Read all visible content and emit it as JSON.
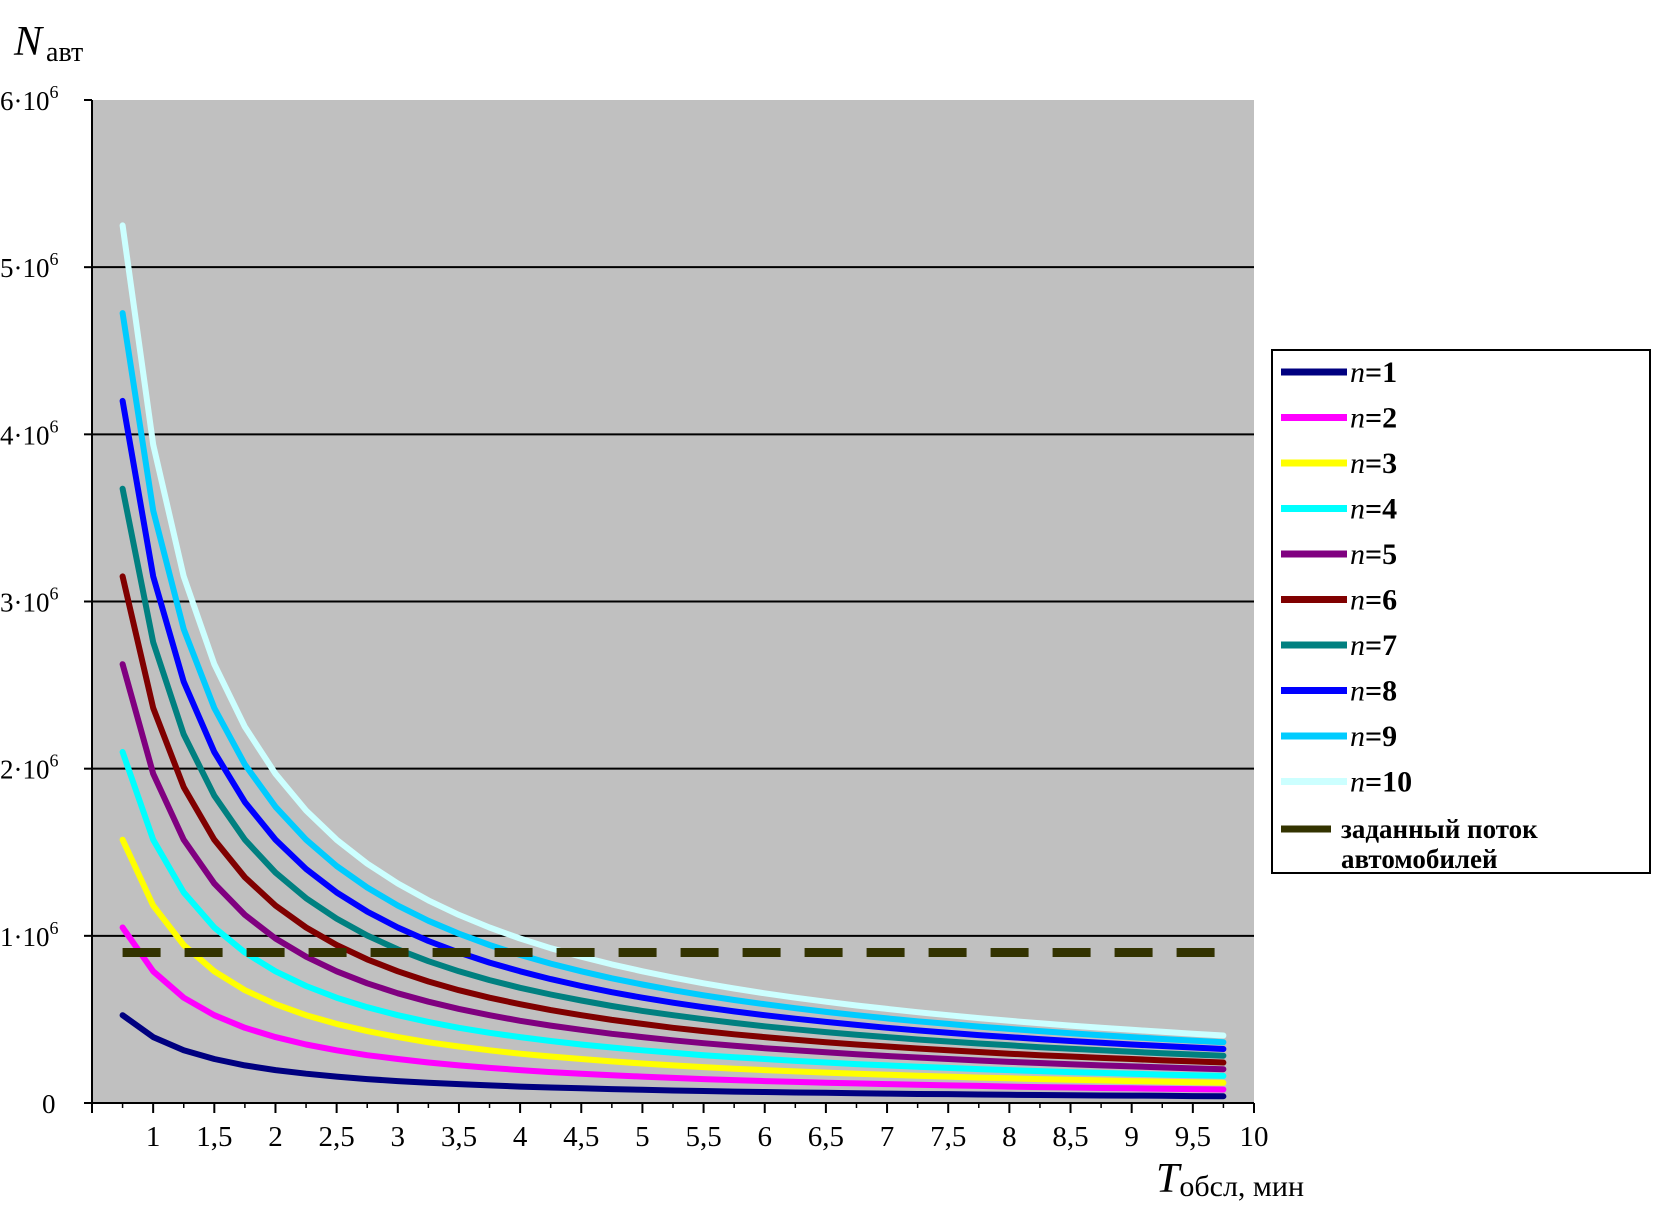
{
  "chart_data": {
    "type": "line",
    "title": "",
    "ylabel_main": "N",
    "ylabel_sub": "авт",
    "xlabel_main": "T",
    "xlabel_sub": "обсл",
    "xlabel_unit": ", мин",
    "xlim": [
      0.5,
      10
    ],
    "ylim": [
      0,
      6000000
    ],
    "x_ticks": [
      {
        "value": 1,
        "label": "1"
      },
      {
        "value": 1.5,
        "label": "1,5"
      },
      {
        "value": 2,
        "label": "2"
      },
      {
        "value": 2.5,
        "label": "2,5"
      },
      {
        "value": 3,
        "label": "3"
      },
      {
        "value": 3.5,
        "label": "3,5"
      },
      {
        "value": 4,
        "label": "4"
      },
      {
        "value": 4.5,
        "label": "4,5"
      },
      {
        "value": 5,
        "label": "5"
      },
      {
        "value": 5.5,
        "label": "5,5"
      },
      {
        "value": 6,
        "label": "6"
      },
      {
        "value": 6.5,
        "label": "6,5"
      },
      {
        "value": 7,
        "label": "7"
      },
      {
        "value": 7.5,
        "label": "7,5"
      },
      {
        "value": 8,
        "label": "8"
      },
      {
        "value": 8.5,
        "label": "8,5"
      },
      {
        "value": 9,
        "label": "9"
      },
      {
        "value": 9.5,
        "label": "9,5"
      },
      {
        "value": 10,
        "label": "10"
      }
    ],
    "y_ticks": [
      {
        "value": 0,
        "mantissa": "0",
        "exp": ""
      },
      {
        "value": 1000000,
        "mantissa": "1·10",
        "exp": "6"
      },
      {
        "value": 2000000,
        "mantissa": "2·10",
        "exp": "6"
      },
      {
        "value": 3000000,
        "mantissa": "3·10",
        "exp": "6"
      },
      {
        "value": 4000000,
        "mantissa": "4·10",
        "exp": "6"
      },
      {
        "value": 5000000,
        "mantissa": "5·10",
        "exp": "6"
      },
      {
        "value": 6000000,
        "mantissa": "6·10",
        "exp": "6"
      }
    ],
    "grid": true,
    "plot_background": "#c0c0c0",
    "legend_position": "right",
    "x": [
      0.75,
      1,
      1.25,
      1.5,
      1.75,
      2,
      2.25,
      2.5,
      2.75,
      3,
      3.25,
      3.5,
      3.75,
      4,
      4.25,
      4.5,
      4.75,
      5,
      5.25,
      5.5,
      5.75,
      6,
      6.25,
      6.5,
      6.75,
      7,
      7.25,
      7.5,
      7.75,
      8,
      8.25,
      8.5,
      8.75,
      9,
      9.25,
      9.5,
      9.75
    ],
    "series": [
      {
        "name": "n=1",
        "legend_n": "n",
        "legend_rest": "=1",
        "color": "#000080",
        "values": [
          525000,
          394000,
          315000,
          263000,
          225000,
          197000,
          175000,
          158000,
          143000,
          131000,
          121000,
          113000,
          105000,
          98000,
          93000,
          88000,
          83000,
          79000,
          75000,
          72000,
          68000,
          66000,
          63000,
          61000,
          58000,
          56000,
          54000,
          53000,
          51000,
          49000,
          48000,
          46000,
          45000,
          44000,
          43000,
          41000,
          40000
        ]
      },
      {
        "name": "n=2",
        "legend_n": "n",
        "legend_rest": "=2",
        "color": "#ff00ff",
        "values": [
          1050000,
          788000,
          630000,
          525000,
          450000,
          394000,
          350000,
          315000,
          286000,
          263000,
          242000,
          225000,
          210000,
          197000,
          185000,
          175000,
          166000,
          158000,
          150000,
          143000,
          137000,
          131000,
          126000,
          121000,
          117000,
          113000,
          109000,
          105000,
          102000,
          98000,
          95000,
          93000,
          90000,
          88000,
          85000,
          83000,
          81000
        ]
      },
      {
        "name": "n=3",
        "legend_n": "n",
        "legend_rest": "=3",
        "color": "#ffff00",
        "values": [
          1575000,
          1181000,
          945000,
          788000,
          675000,
          591000,
          525000,
          473000,
          430000,
          394000,
          363000,
          338000,
          315000,
          295000,
          278000,
          263000,
          249000,
          236000,
          225000,
          215000,
          205000,
          197000,
          189000,
          182000,
          175000,
          169000,
          163000,
          158000,
          152000,
          148000,
          143000,
          139000,
          135000,
          131000,
          128000,
          124000,
          121000
        ]
      },
      {
        "name": "n=4",
        "legend_n": "n",
        "legend_rest": "=4",
        "color": "#00ffff",
        "values": [
          2100000,
          1575000,
          1260000,
          1050000,
          900000,
          788000,
          700000,
          630000,
          573000,
          525000,
          485000,
          450000,
          420000,
          394000,
          371000,
          350000,
          332000,
          315000,
          300000,
          286000,
          274000,
          263000,
          252000,
          242000,
          233000,
          225000,
          217000,
          210000,
          203000,
          197000,
          191000,
          185000,
          180000,
          175000,
          170000,
          166000,
          162000
        ]
      },
      {
        "name": "n=5",
        "legend_n": "n",
        "legend_rest": "=5",
        "color": "#800080",
        "values": [
          2625000,
          1969000,
          1575000,
          1313000,
          1125000,
          984000,
          875000,
          788000,
          716000,
          656000,
          606000,
          563000,
          525000,
          492000,
          463000,
          438000,
          414000,
          394000,
          375000,
          358000,
          342000,
          328000,
          315000,
          303000,
          292000,
          281000,
          272000,
          263000,
          254000,
          246000,
          239000,
          232000,
          225000,
          219000,
          213000,
          207000,
          202000
        ]
      },
      {
        "name": "n=6",
        "legend_n": "n",
        "legend_rest": "=6",
        "color": "#800000",
        "values": [
          3150000,
          2363000,
          1890000,
          1575000,
          1350000,
          1181000,
          1050000,
          945000,
          859000,
          788000,
          727000,
          675000,
          630000,
          591000,
          556000,
          525000,
          497000,
          473000,
          450000,
          430000,
          411000,
          394000,
          378000,
          363000,
          350000,
          338000,
          326000,
          315000,
          305000,
          295000,
          286000,
          278000,
          270000,
          263000,
          255000,
          249000,
          242000
        ]
      },
      {
        "name": "n=7",
        "legend_n": "n",
        "legend_rest": "=7",
        "color": "#008080",
        "values": [
          3675000,
          2756000,
          2205000,
          1838000,
          1575000,
          1378000,
          1225000,
          1103000,
          1002000,
          919000,
          848000,
          788000,
          735000,
          689000,
          649000,
          613000,
          580000,
          551000,
          525000,
          501000,
          479000,
          459000,
          441000,
          424000,
          408000,
          394000,
          380000,
          368000,
          356000,
          345000,
          334000,
          324000,
          315000,
          306000,
          298000,
          290000,
          283000
        ]
      },
      {
        "name": "n=8",
        "legend_n": "n",
        "legend_rest": "=8",
        "color": "#0000ff",
        "values": [
          4200000,
          3150000,
          2520000,
          2100000,
          1800000,
          1575000,
          1400000,
          1260000,
          1145000,
          1050000,
          969000,
          900000,
          840000,
          788000,
          741000,
          700000,
          663000,
          630000,
          600000,
          573000,
          548000,
          525000,
          504000,
          485000,
          467000,
          450000,
          434000,
          420000,
          406000,
          394000,
          382000,
          371000,
          360000,
          350000,
          341000,
          332000,
          323000
        ]
      },
      {
        "name": "n=9",
        "legend_n": "n",
        "legend_rest": "=9",
        "color": "#00ccff",
        "values": [
          4725000,
          3544000,
          2835000,
          2363000,
          2025000,
          1772000,
          1575000,
          1418000,
          1289000,
          1181000,
          1090000,
          1013000,
          945000,
          886000,
          834000,
          788000,
          746000,
          709000,
          675000,
          644000,
          616000,
          591000,
          567000,
          545000,
          525000,
          506000,
          489000,
          473000,
          457000,
          443000,
          430000,
          417000,
          405000,
          394000,
          383000,
          373000,
          363000
        ]
      },
      {
        "name": "n=10",
        "legend_n": "n",
        "legend_rest": "=10",
        "color": "#ccffff",
        "values": [
          5250000,
          3938000,
          3150000,
          2625000,
          2250000,
          1969000,
          1750000,
          1575000,
          1432000,
          1313000,
          1212000,
          1125000,
          1050000,
          984000,
          926000,
          875000,
          829000,
          788000,
          750000,
          716000,
          685000,
          656000,
          630000,
          606000,
          583000,
          563000,
          543000,
          525000,
          508000,
          492000,
          477000,
          463000,
          450000,
          438000,
          426000,
          414000,
          404000
        ]
      }
    ],
    "threshold": {
      "name": "заданный поток автомобилей",
      "legend_line1": "заданный поток",
      "legend_line2": "автомобилей",
      "color": "#333300",
      "value": 900000,
      "x_from": 0.75,
      "x_to": 9.75
    }
  }
}
